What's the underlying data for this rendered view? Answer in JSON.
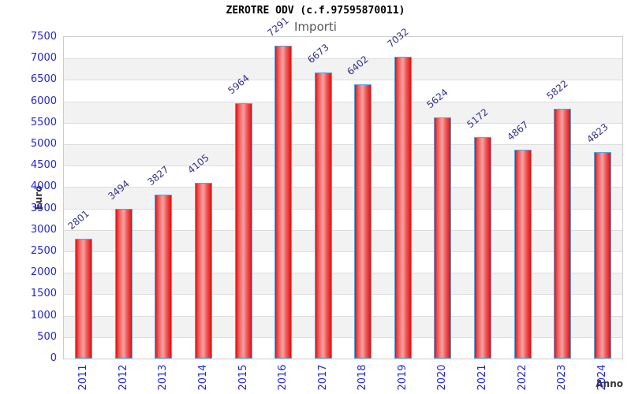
{
  "chart_data": {
    "type": "bar",
    "title": "ZEROTRE ODV (c.f.97595870011)",
    "subtitle": "Importi",
    "xlabel": "Anno",
    "ylabel": "Euro",
    "categories": [
      "2011",
      "2012",
      "2013",
      "2014",
      "2015",
      "2016",
      "2017",
      "2018",
      "2019",
      "2020",
      "2021",
      "2022",
      "2023",
      "2024"
    ],
    "values": [
      2801,
      3494,
      3827,
      4105,
      5964,
      7291,
      6673,
      6402,
      7032,
      5624,
      5172,
      4867,
      5822,
      4823
    ],
    "ylim": [
      0,
      7500
    ],
    "ytick_step": 500,
    "y_ticks": [
      0,
      500,
      1000,
      1500,
      2000,
      2500,
      3000,
      3500,
      4000,
      4500,
      5000,
      5500,
      6000,
      6500,
      7000,
      7500
    ],
    "grid": true,
    "legend_position": "none",
    "colors": {
      "bar_edge_red": "#dd1212",
      "bar_mid_red": "#ee5555",
      "bar_center_pink": "#f5a2a2",
      "bar_border": "#55a2e2",
      "tick_label_blue": "#2424dd",
      "value_label_navy": "#32328c",
      "band_gray": "#f2f2f2",
      "gridline_gray": "#dddddd",
      "plot_border_gray": "#cccccc",
      "title_black": "#000000",
      "subtitle_gray": "#565656",
      "axis_title_dark": "#333333"
    }
  }
}
